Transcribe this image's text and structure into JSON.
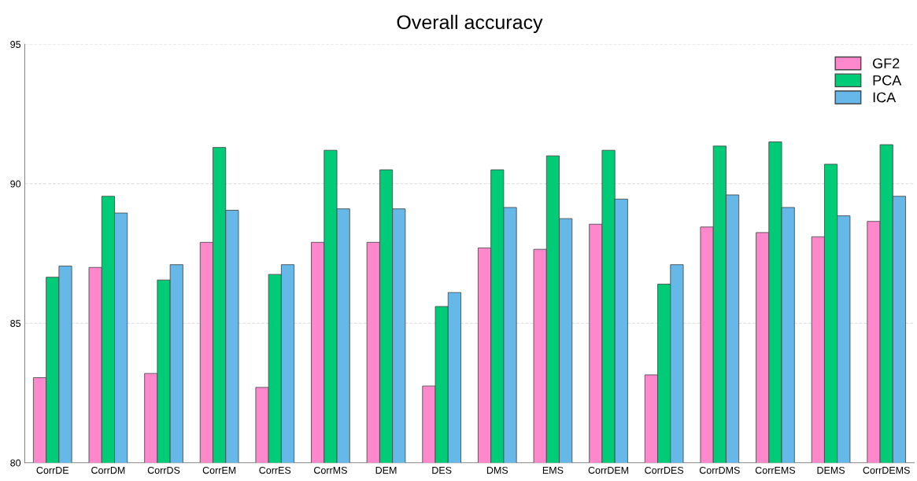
{
  "chart_data": {
    "type": "bar",
    "title": "Overall accuracy",
    "categories": [
      "CorrDE",
      "CorrDM",
      "CorrDS",
      "CorrEM",
      "CorrES",
      "CorrMS",
      "DEM",
      "DES",
      "DMS",
      "EMS",
      "CorrDEM",
      "CorrDES",
      "CorrDMS",
      "CorrEMS",
      "DEMS",
      "CorrDEMS"
    ],
    "series": [
      {
        "name": "GF2",
        "color": "#ff88cc",
        "values": [
          83.05,
          87.0,
          83.2,
          87.9,
          82.7,
          87.9,
          87.9,
          82.75,
          87.7,
          87.65,
          88.55,
          83.15,
          88.45,
          88.25,
          88.1,
          88.65
        ]
      },
      {
        "name": "PCA",
        "color": "#00cc77",
        "values": [
          86.65,
          89.55,
          86.55,
          91.3,
          86.75,
          91.2,
          90.5,
          85.6,
          90.5,
          91.0,
          91.2,
          86.4,
          91.35,
          91.5,
          90.7,
          91.4
        ]
      },
      {
        "name": "ICA",
        "color": "#66b8e8",
        "values": [
          87.05,
          88.95,
          87.1,
          89.05,
          87.1,
          89.1,
          89.1,
          86.1,
          89.15,
          88.75,
          89.45,
          87.1,
          89.6,
          89.15,
          88.85,
          89.55
        ]
      }
    ],
    "ylim": [
      80,
      95
    ],
    "yticks": [
      80,
      85,
      90,
      95
    ],
    "grid": "y",
    "legend": "top right"
  }
}
